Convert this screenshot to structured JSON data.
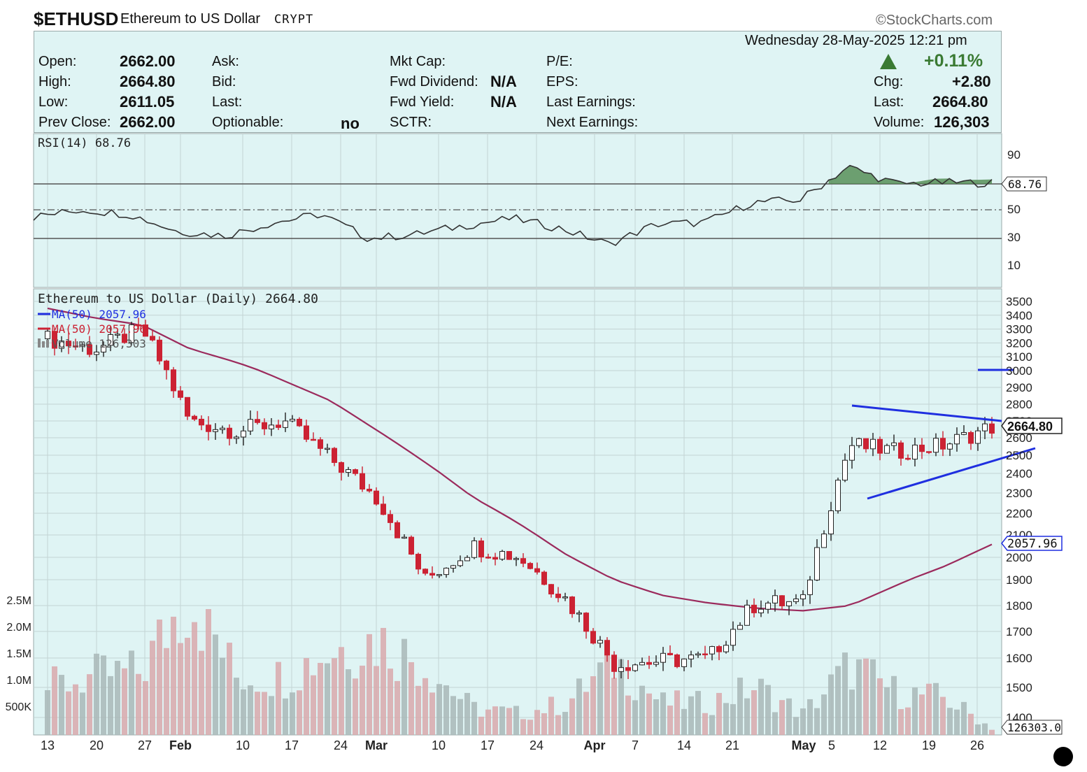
{
  "header": {
    "symbol": "$ETHUSD",
    "name": "Ethereum to US Dollar",
    "exchange": "CRYPT",
    "brand": "©StockCharts.com",
    "date": "Wednesday  28-May-2025  12:21 pm"
  },
  "quote": {
    "open_label": "Open:",
    "open": "2662.00",
    "high_label": "High:",
    "high": "2664.80",
    "low_label": "Low:",
    "low": "2611.05",
    "prev_label": "Prev Close:",
    "prev": "2662.00",
    "ask_label": "Ask:",
    "bid_label": "Bid:",
    "last_label": "Last:",
    "optionable_label": "Optionable:",
    "optionable": "no",
    "mktcap_label": "Mkt Cap:",
    "fwddiv_label": "Fwd Dividend:",
    "fwddiv": "N/A",
    "fwdyield_label": "Fwd Yield:",
    "fwdyield": "N/A",
    "sctr_label": "SCTR:",
    "pe_label": "P/E:",
    "eps_label": "EPS:",
    "lastearn_label": "Last Earnings:",
    "nextearn_label": "Next Earnings:",
    "pct_change": "+0.11%",
    "chg_label": "Chg:",
    "chg": "+2.80",
    "last2_label": "Last:",
    "last2": "2664.80",
    "volume_label": "Volume:",
    "volume": "126,303"
  },
  "rsi_panel": {
    "label": "RSI(14) 68.76",
    "ticks": [
      "90",
      "50",
      "30",
      "10"
    ],
    "current": "68.76"
  },
  "price_panel": {
    "label": "Ethereum to US Dollar (Daily) 2664.80",
    "ma_blue": "MA(50) 2057.96",
    "ma_red": "MA(50) 2057.96",
    "volume_legend": "Volume 126,303",
    "price_ticks": [
      "3500",
      "3400",
      "3300",
      "3200",
      "3100",
      "3000",
      "2900",
      "2800",
      "2700",
      "2600",
      "2500",
      "2400",
      "2300",
      "2200",
      "2100",
      "2000",
      "1900",
      "1800",
      "1700",
      "1600",
      "1500",
      "1400"
    ],
    "volume_ticks": [
      "2.5M",
      "2.0M",
      "1.5M",
      "1.0M",
      "500K"
    ],
    "last_price_tag": "2664.80",
    "ma_tag": "2057.96",
    "volume_tag": "126303.0"
  },
  "x_axis": {
    "labels": [
      "13",
      "20",
      "27",
      "Feb",
      "10",
      "17",
      "24",
      "Mar",
      "10",
      "17",
      "24",
      "Apr",
      "7",
      "14",
      "21",
      "May",
      "5",
      "12",
      "19",
      "26"
    ]
  },
  "colors": {
    "panel_bg": "#dff4f4",
    "up": "#ffffff",
    "down": "#cc2233",
    "ma": "#9b2a5c",
    "trendline": "#1f2fe0",
    "rsi_fill": "#4f8a4f"
  },
  "chart_data": {
    "type": "candlestick",
    "title": "Ethereum to US Dollar (Daily) 2664.80",
    "x": [
      "Jan 13",
      "Jan 20",
      "Jan 27",
      "Feb 3",
      "Feb 10",
      "Feb 17",
      "Feb 24",
      "Mar 3",
      "Mar 10",
      "Mar 17",
      "Mar 24",
      "Mar 31",
      "Apr 7",
      "Apr 14",
      "Apr 21",
      "Apr 28",
      "May 5",
      "May 12",
      "May 19",
      "May 26",
      "May 28"
    ],
    "close": [
      3230,
      3150,
      3300,
      2700,
      2640,
      2700,
      2480,
      2270,
      1900,
      2050,
      2000,
      1820,
      1580,
      1590,
      1600,
      1810,
      1810,
      2560,
      2520,
      2560,
      2664.8
    ],
    "ma50": [
      3450,
      3380,
      3330,
      3160,
      3060,
      2940,
      2820,
      2640,
      2460,
      2280,
      2150,
      2010,
      1900,
      1840,
      1810,
      1790,
      1780,
      1800,
      1880,
      1960,
      2057.96
    ],
    "rsi": [
      45,
      50,
      47,
      35,
      32,
      41,
      47,
      30,
      33,
      39,
      44,
      37,
      26,
      40,
      41,
      55,
      57,
      80,
      68,
      69,
      68.76
    ],
    "volume_M": [
      0.9,
      1.1,
      1.2,
      2.7,
      1.1,
      1.1,
      1.6,
      1.8,
      1.3,
      0.5,
      0.4,
      0.6,
      1.4,
      0.6,
      0.6,
      0.9,
      0.4,
      1.3,
      0.8,
      0.7,
      0.13
    ],
    "ylim": [
      1400,
      3500
    ],
    "rsi_levels": [
      70,
      50,
      30
    ],
    "grid": true
  }
}
